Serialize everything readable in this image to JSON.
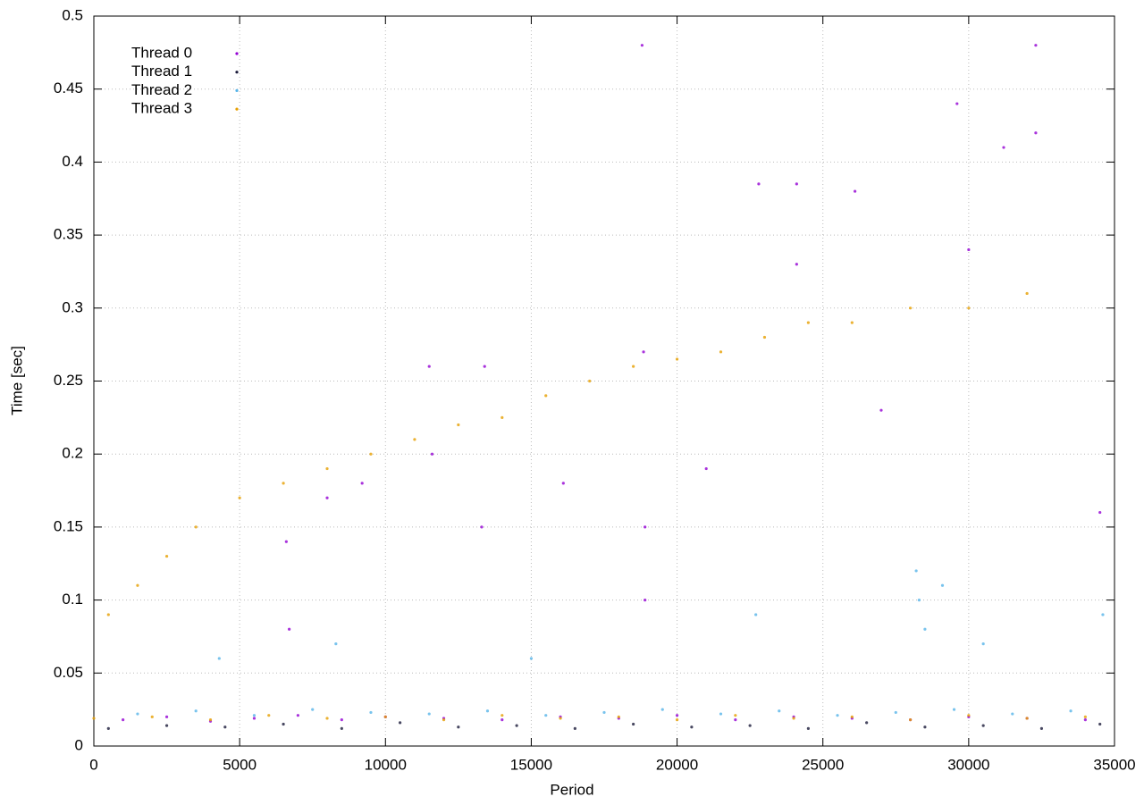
{
  "chart_data": {
    "type": "scatter",
    "xlabel": "Period",
    "ylabel": "Time [sec]",
    "xlim": [
      0,
      35000
    ],
    "xticks": [
      0,
      5000,
      10000,
      15000,
      20000,
      25000,
      30000,
      35000
    ],
    "ylim": [
      0,
      0.5
    ],
    "yticks": [
      0,
      0.05,
      0.1,
      0.15,
      0.2,
      0.25,
      0.3,
      0.35,
      0.4,
      0.45,
      0.5
    ],
    "grid": true,
    "legend": "top-left",
    "series": [
      {
        "name": "Thread 0",
        "color": "#9400d3",
        "x": [
          1000,
          2500,
          4000,
          5500,
          7000,
          8500,
          10000,
          12000,
          14000,
          16000,
          18000,
          20000,
          22000,
          24000,
          26000,
          28000,
          30000,
          32000,
          34000,
          6600,
          6700,
          8000,
          9200,
          11500,
          11600,
          13300,
          13400,
          16100,
          18800,
          18850,
          18900,
          18900,
          21000,
          22800,
          24100,
          24100,
          26100,
          27000,
          29600,
          30000,
          31200,
          32300,
          32300,
          34500
        ],
        "values": [
          0.018,
          0.02,
          0.017,
          0.019,
          0.021,
          0.018,
          0.02,
          0.019,
          0.018,
          0.02,
          0.019,
          0.021,
          0.018,
          0.02,
          0.019,
          0.018,
          0.02,
          0.019,
          0.018,
          0.14,
          0.08,
          0.17,
          0.18,
          0.26,
          0.2,
          0.15,
          0.26,
          0.18,
          0.48,
          0.27,
          0.15,
          0.1,
          0.19,
          0.385,
          0.33,
          0.385,
          0.38,
          0.23,
          0.44,
          0.34,
          0.41,
          0.48,
          0.42,
          0.16
        ]
      },
      {
        "name": "Thread 1",
        "color": "#1a1a3a",
        "x": [
          500,
          2500,
          4500,
          6500,
          8500,
          10500,
          12500,
          14500,
          16500,
          18500,
          20500,
          22500,
          24500,
          26500,
          28500,
          30500,
          32500,
          34500
        ],
        "values": [
          0.012,
          0.014,
          0.013,
          0.015,
          0.012,
          0.016,
          0.013,
          0.014,
          0.012,
          0.015,
          0.013,
          0.014,
          0.012,
          0.016,
          0.013,
          0.014,
          0.012,
          0.015
        ]
      },
      {
        "name": "Thread 2",
        "color": "#56b4e9",
        "x": [
          1500,
          3500,
          5500,
          7500,
          9500,
          11500,
          13500,
          15500,
          17500,
          19500,
          21500,
          23500,
          25500,
          27500,
          29500,
          31500,
          33500,
          4300,
          8300,
          15000,
          22700,
          28200,
          28300,
          28500,
          29100,
          30500,
          34600
        ],
        "values": [
          0.022,
          0.024,
          0.021,
          0.025,
          0.023,
          0.022,
          0.024,
          0.021,
          0.023,
          0.025,
          0.022,
          0.024,
          0.021,
          0.023,
          0.025,
          0.022,
          0.024,
          0.06,
          0.07,
          0.06,
          0.09,
          0.12,
          0.1,
          0.08,
          0.11,
          0.07,
          0.09
        ]
      },
      {
        "name": "Thread 3",
        "color": "#e69f00",
        "x": [
          0,
          2000,
          4000,
          6000,
          8000,
          10000,
          12000,
          14000,
          16000,
          18000,
          20000,
          22000,
          24000,
          26000,
          28000,
          30000,
          32000,
          34000,
          500,
          1500,
          2500,
          3500,
          5000,
          6500,
          8000,
          9500,
          11000,
          12500,
          14000,
          15500,
          17000,
          18500,
          20000,
          21500,
          23000,
          24500,
          26000,
          28000,
          30000,
          32000
        ],
        "values": [
          0.019,
          0.02,
          0.018,
          0.021,
          0.019,
          0.02,
          0.018,
          0.021,
          0.019,
          0.02,
          0.018,
          0.021,
          0.019,
          0.02,
          0.018,
          0.021,
          0.019,
          0.02,
          0.09,
          0.11,
          0.13,
          0.15,
          0.17,
          0.18,
          0.19,
          0.2,
          0.21,
          0.22,
          0.225,
          0.24,
          0.25,
          0.26,
          0.265,
          0.27,
          0.28,
          0.29,
          0.29,
          0.3,
          0.3,
          0.31
        ]
      }
    ]
  }
}
